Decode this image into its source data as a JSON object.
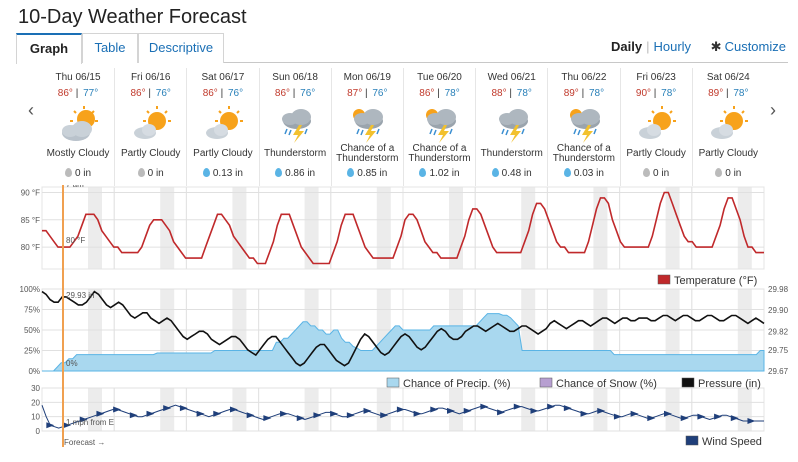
{
  "page_title": "10-Day Weather Forecast",
  "tabs": [
    {
      "label": "Graph",
      "active": true
    },
    {
      "label": "Table",
      "active": false
    },
    {
      "label": "Descriptive",
      "active": false
    }
  ],
  "nav": {
    "daily": "Daily",
    "separator": "|",
    "hourly": "Hourly",
    "customize": "Customize"
  },
  "arrows": {
    "prev": "‹",
    "next": "›"
  },
  "days": [
    {
      "name": "Thu 06/15",
      "hi": "86°",
      "lo": "77°",
      "icon": "mostly-cloudy-icon",
      "cond": "Mostly Cloudy",
      "precip": "0 in",
      "drop": "gray"
    },
    {
      "name": "Fri 06/16",
      "hi": "86°",
      "lo": "76°",
      "icon": "partly-cloudy-icon",
      "cond": "Partly Cloudy",
      "precip": "0 in",
      "drop": "gray"
    },
    {
      "name": "Sat 06/17",
      "hi": "86°",
      "lo": "76°",
      "icon": "partly-cloudy-icon",
      "cond": "Partly Cloudy",
      "precip": "0.13 in",
      "drop": "blue"
    },
    {
      "name": "Sun 06/18",
      "hi": "86°",
      "lo": "76°",
      "icon": "thunderstorm-icon",
      "cond": "Thunderstorm",
      "precip": "0.86 in",
      "drop": "blue"
    },
    {
      "name": "Mon 06/19",
      "hi": "87°",
      "lo": "76°",
      "icon": "chance-thunderstorm-icon",
      "cond": "Chance of a Thunderstorm",
      "precip": "0.85 in",
      "drop": "blue"
    },
    {
      "name": "Tue 06/20",
      "hi": "86°",
      "lo": "78°",
      "icon": "chance-thunderstorm-icon",
      "cond": "Chance of a Thunderstorm",
      "precip": "1.02 in",
      "drop": "blue"
    },
    {
      "name": "Wed 06/21",
      "hi": "88°",
      "lo": "78°",
      "icon": "thunderstorm-icon",
      "cond": "Thunderstorm",
      "precip": "0.48 in",
      "drop": "blue"
    },
    {
      "name": "Thu 06/22",
      "hi": "89°",
      "lo": "78°",
      "icon": "chance-thunderstorm-icon",
      "cond": "Chance of a Thunderstorm",
      "precip": "0.03 in",
      "drop": "blue"
    },
    {
      "name": "Fri 06/23",
      "hi": "90°",
      "lo": "78°",
      "icon": "partly-cloudy-icon",
      "cond": "Partly Cloudy",
      "precip": "0 in",
      "drop": "gray"
    },
    {
      "name": "Sat 06/24",
      "hi": "89°",
      "lo": "78°",
      "icon": "partly-cloudy-icon",
      "cond": "Partly Cloudy",
      "precip": "0 in",
      "drop": "gray"
    }
  ],
  "colors": {
    "temp": "#c0292b",
    "precip_fill": "#a9d8ef",
    "precip_line": "#5ab4e5",
    "pressure": "#111111",
    "wind": "#1f3f7a",
    "snow": "#b79fd1",
    "cursor": "#f0a050"
  },
  "cursor": {
    "time": "7 am",
    "temp": "80 °F",
    "pressure": "29.93 in",
    "precip": "0%",
    "wind": "1 mph from E",
    "forecast": "Forecast →"
  },
  "chart_data": [
    {
      "type": "line",
      "name": "temperature",
      "legend": "Temperature (°F)",
      "y_ticks": [
        "90 °F",
        "85 °F",
        "80 °F"
      ],
      "ylim": [
        76,
        91
      ],
      "x_unit": "hours from Thu 06/15 00:00",
      "values": [
        83,
        83,
        82,
        81,
        80,
        80,
        80,
        80,
        81,
        82,
        84,
        86,
        86,
        86,
        85,
        83,
        82,
        81,
        80,
        80,
        79,
        79,
        79,
        79,
        79,
        80,
        82,
        84,
        85,
        85,
        85,
        84,
        83,
        81,
        80,
        79,
        78,
        78,
        78,
        78,
        78,
        80,
        82,
        84,
        86,
        86,
        85,
        84,
        82,
        81,
        80,
        79,
        78,
        78,
        77,
        77,
        77,
        79,
        81,
        84,
        86,
        86,
        86,
        84,
        82,
        80,
        79,
        78,
        77,
        77,
        77,
        77,
        77,
        79,
        81,
        84,
        86,
        86,
        86,
        84,
        82,
        80,
        79,
        78,
        78,
        78,
        78,
        78,
        78,
        80,
        82,
        85,
        86,
        86,
        85,
        83,
        81,
        80,
        79,
        79,
        78,
        78,
        78,
        78,
        78,
        80,
        82,
        85,
        87,
        87,
        86,
        84,
        82,
        80,
        79,
        79,
        79,
        79,
        79,
        79,
        79,
        81,
        83,
        86,
        88,
        88,
        87,
        85,
        83,
        81,
        80,
        80,
        79,
        79,
        79,
        79,
        79,
        81,
        84,
        87,
        89,
        89,
        88,
        85,
        83,
        81,
        80,
        80,
        80,
        80,
        80,
        80,
        80,
        82,
        85,
        88,
        90,
        90,
        88,
        86,
        84,
        82,
        81,
        81,
        80,
        80,
        80,
        80,
        80,
        82,
        84,
        87,
        89,
        89,
        87,
        85,
        82,
        80,
        80,
        79,
        79,
        79
      ]
    },
    {
      "type": "area",
      "name": "precip",
      "legend": "Chance of Precip. (%)",
      "y_ticks": [
        "100%",
        "75%",
        "50%",
        "25%",
        "0%"
      ],
      "ylim": [
        0,
        100
      ],
      "values": [
        0,
        0,
        0,
        0,
        5,
        10,
        10,
        15,
        15,
        20,
        20,
        20,
        20,
        20,
        20,
        20,
        20,
        20,
        20,
        20,
        20,
        20,
        20,
        20,
        20,
        20,
        20,
        20,
        20,
        20,
        22,
        22,
        22,
        22,
        22,
        22,
        22,
        22,
        22,
        22,
        22,
        22,
        22,
        22,
        22,
        25,
        25,
        25,
        25,
        25,
        25,
        25,
        25,
        25,
        25,
        25,
        25,
        25,
        25,
        25,
        25,
        35,
        35,
        40,
        40,
        45,
        50,
        55,
        60,
        60,
        55,
        55,
        50,
        50,
        45,
        45,
        50,
        50,
        40,
        35,
        35,
        30,
        28,
        25,
        25,
        25,
        25,
        30,
        35,
        40,
        45,
        50,
        55,
        55,
        50,
        50,
        50,
        50,
        50,
        50,
        50,
        50,
        55,
        55,
        55,
        55,
        55,
        55,
        55,
        55,
        55,
        55,
        55,
        55,
        60,
        65,
        70,
        70,
        70,
        70,
        68,
        68,
        65,
        60,
        55,
        25,
        25,
        25,
        25,
        25,
        25,
        25,
        25,
        25,
        25,
        25,
        25,
        25,
        25,
        25,
        25,
        25,
        25,
        25,
        25,
        25,
        25,
        25,
        25,
        20,
        20,
        20,
        20,
        20,
        20,
        20,
        20,
        20,
        20,
        20,
        20,
        20,
        20,
        20,
        20,
        20,
        20,
        20,
        20,
        20,
        20,
        20,
        20,
        20,
        20,
        20,
        20,
        20,
        20,
        20,
        20,
        20,
        20,
        20,
        20,
        20,
        20,
        25,
        25
      ]
    },
    {
      "type": "line",
      "name": "snow",
      "legend": "Chance of Snow (%)",
      "values": []
    },
    {
      "type": "line",
      "name": "pressure",
      "legend": "Pressure (in)",
      "y_ticks": [
        "29.98",
        "29.90",
        "29.82",
        "29.75",
        "29.67"
      ],
      "ylim": [
        29.67,
        29.98
      ],
      "values": [
        29.97,
        29.96,
        29.94,
        29.93,
        29.93,
        29.95,
        29.95,
        29.94,
        29.93,
        29.92,
        29.92,
        29.93,
        29.95,
        29.97,
        29.96,
        29.94,
        29.92,
        29.91,
        29.92,
        29.93,
        29.92,
        29.9,
        29.88,
        29.87,
        29.88,
        29.89,
        29.89,
        29.87,
        29.86,
        29.85,
        29.86,
        29.87,
        29.86,
        29.84,
        29.82,
        29.8,
        29.79,
        29.8,
        29.81,
        29.82,
        29.82,
        29.81,
        29.79,
        29.78,
        29.77,
        29.78,
        29.79,
        29.8,
        29.8,
        29.79,
        29.77,
        29.75,
        29.74,
        29.73,
        29.75,
        29.77,
        29.79,
        29.8,
        29.8,
        29.78,
        29.76,
        29.74,
        29.72,
        29.7,
        29.69,
        29.7,
        29.72,
        29.74,
        29.76,
        29.77,
        29.77,
        29.75,
        29.73,
        29.71,
        29.7,
        29.69,
        29.7,
        29.73,
        29.76,
        29.79,
        29.81,
        29.8,
        29.78,
        29.76,
        29.74,
        29.73,
        29.74,
        29.76,
        29.78,
        29.8,
        29.81,
        29.8,
        29.78,
        29.76,
        29.75,
        29.76,
        29.78,
        29.8,
        29.82,
        29.83,
        29.82,
        29.8,
        29.79,
        29.79,
        29.8,
        29.82,
        29.83,
        29.84,
        29.84,
        29.83,
        29.82,
        29.83,
        29.84,
        29.85,
        29.84,
        29.83,
        29.82,
        29.82,
        29.83,
        29.84,
        29.84,
        29.83,
        29.82,
        29.81,
        29.82,
        29.83,
        29.85,
        29.86,
        29.85,
        29.84,
        29.83,
        29.84,
        29.85,
        29.86,
        29.86,
        29.85,
        29.84,
        29.85,
        29.86,
        29.87,
        29.87,
        29.86,
        29.85,
        29.86,
        29.87,
        29.87,
        29.86,
        29.86,
        29.87,
        29.87,
        29.87,
        29.86,
        29.86,
        29.87,
        29.88,
        29.88,
        29.87,
        29.86,
        29.87,
        29.88,
        29.88,
        29.87,
        29.86,
        29.86,
        29.87,
        29.88,
        29.88,
        29.87,
        29.86,
        29.86,
        29.87,
        29.88,
        29.88,
        29.87,
        29.86,
        29.85,
        29.86,
        29.87,
        29.86,
        29.85
      ]
    },
    {
      "type": "line",
      "name": "wind",
      "legend": "Wind Speed",
      "y_ticks": [
        "30",
        "20",
        "10",
        "0"
      ],
      "ylim": [
        0,
        30
      ],
      "values": [
        18,
        10,
        4,
        3,
        2,
        3,
        4,
        5,
        6,
        7,
        8,
        9,
        10,
        11,
        12,
        13,
        14,
        15,
        15,
        14,
        13,
        12,
        11,
        10,
        10,
        11,
        12,
        13,
        14,
        15,
        16,
        17,
        18,
        17,
        16,
        15,
        14,
        13,
        12,
        11,
        10,
        11,
        12,
        13,
        14,
        15,
        15,
        14,
        13,
        12,
        11,
        10,
        9,
        8,
        9,
        10,
        11,
        12,
        12,
        12,
        11,
        10,
        9,
        8,
        9,
        10,
        11,
        12,
        13,
        13,
        12,
        11,
        10,
        10,
        11,
        12,
        13,
        14,
        14,
        13,
        12,
        11,
        11,
        12,
        13,
        14,
        15,
        15,
        14,
        13,
        12,
        12,
        13,
        14,
        15,
        16,
        16,
        15,
        14,
        13,
        12,
        13,
        14,
        15,
        16,
        17,
        17,
        16,
        15,
        14,
        13,
        14,
        15,
        16,
        17,
        17,
        16,
        15,
        14,
        14,
        15,
        16,
        17,
        18,
        18,
        17,
        16,
        15,
        14,
        13,
        12,
        12,
        13,
        14,
        14,
        13,
        12,
        11,
        10,
        10,
        11,
        12,
        12,
        11,
        10,
        9,
        9,
        10,
        11,
        12,
        12,
        11,
        10,
        9,
        9,
        10,
        11,
        11,
        10,
        9,
        8,
        9,
        10,
        11,
        11,
        10,
        9,
        8,
        7,
        7,
        7,
        7,
        7,
        7
      ]
    }
  ]
}
